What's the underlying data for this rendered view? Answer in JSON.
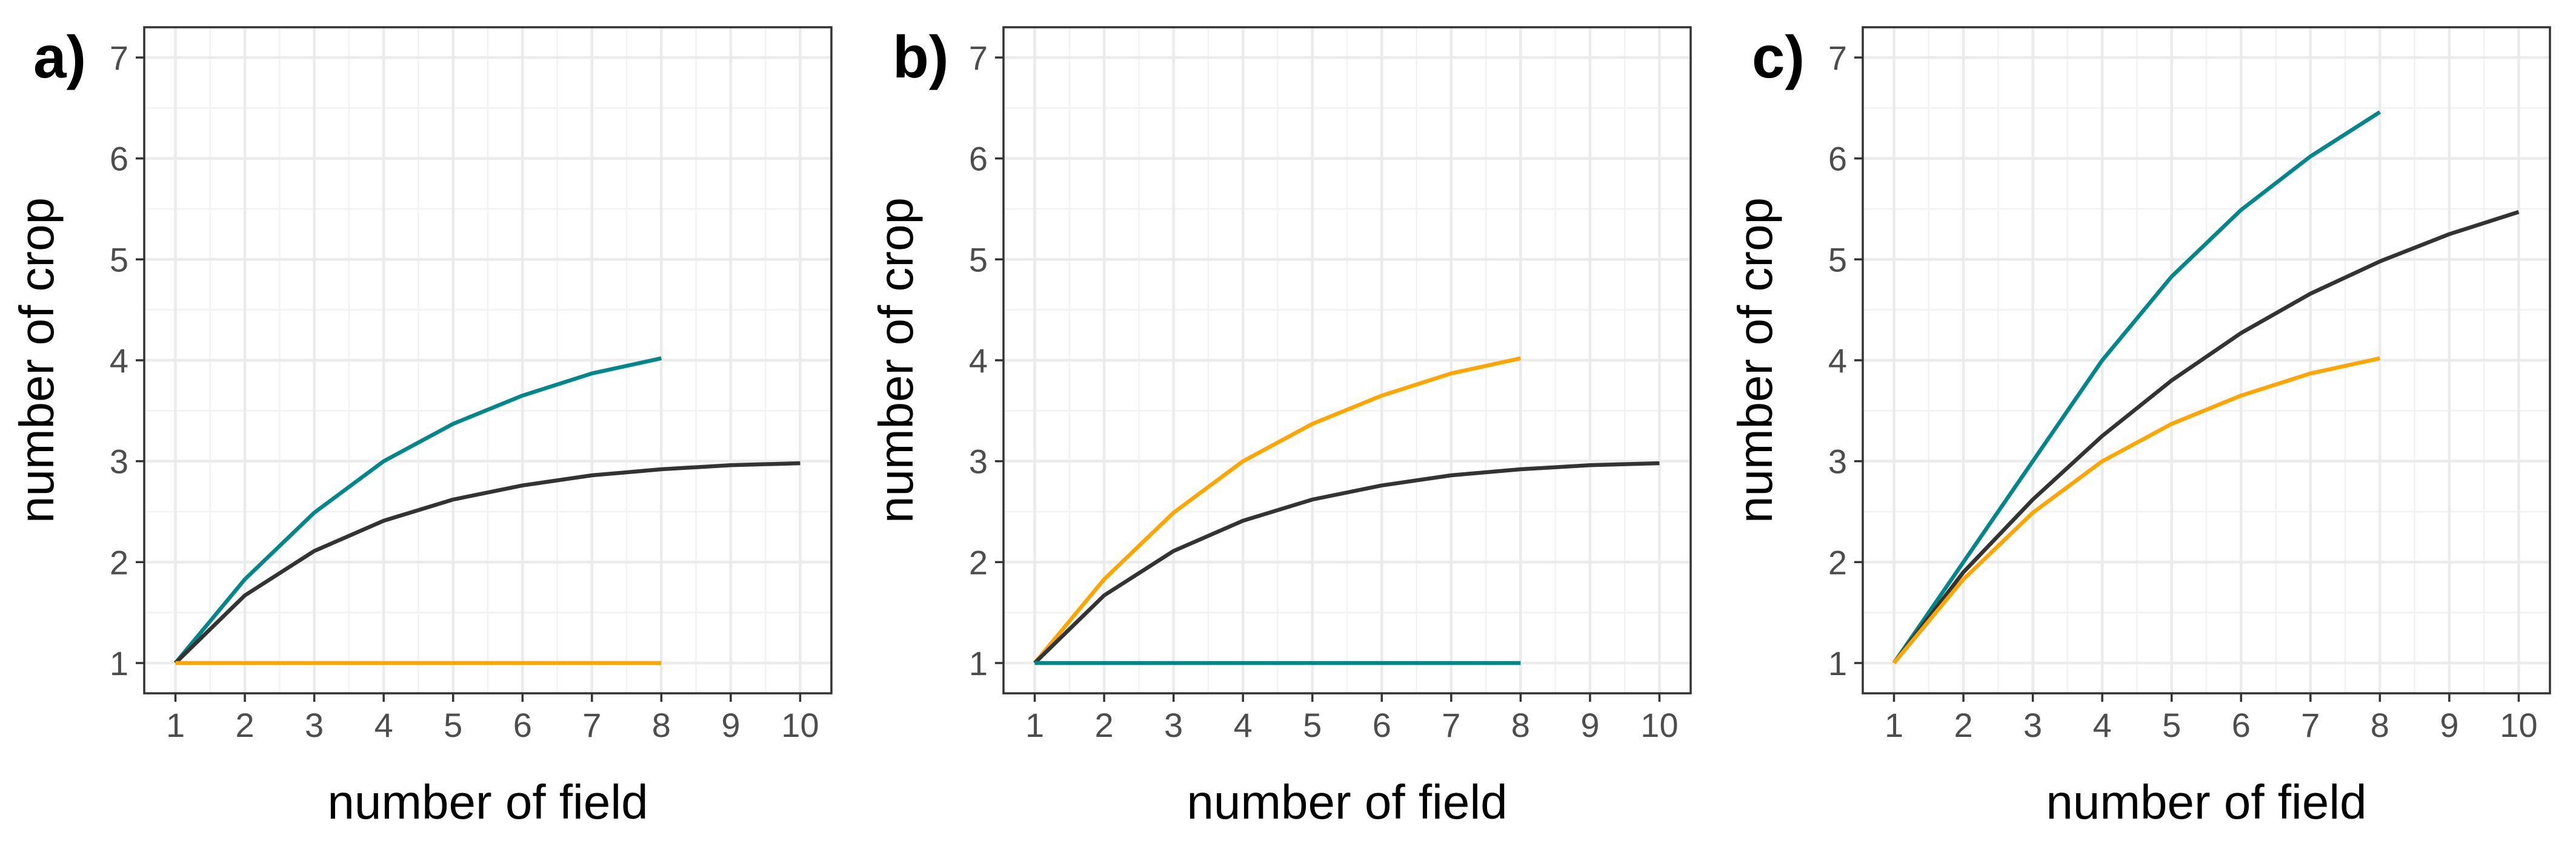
{
  "chart_data": [
    {
      "type": "line",
      "panel_label": "a)",
      "xlabel": "number of field",
      "ylabel": "number of crop",
      "xlim": [
        1,
        10
      ],
      "ylim": [
        1,
        7
      ],
      "xticks": [
        1,
        2,
        3,
        4,
        5,
        6,
        7,
        8,
        9,
        10
      ],
      "yticks": [
        1,
        2,
        3,
        4,
        5,
        6,
        7
      ],
      "grid": true,
      "series": [
        {
          "color": "#00868B",
          "x": [
            1,
            2,
            3,
            4,
            5,
            6,
            7,
            8
          ],
          "y": [
            1,
            1.83,
            2.49,
            3.0,
            3.37,
            3.65,
            3.87,
            4.02
          ]
        },
        {
          "color": "#333333",
          "x": [
            1,
            2,
            3,
            4,
            5,
            6,
            7,
            8,
            9,
            10
          ],
          "y": [
            1,
            1.67,
            2.11,
            2.41,
            2.62,
            2.76,
            2.86,
            2.92,
            2.96,
            2.98
          ]
        },
        {
          "color": "#FFA500",
          "x": [
            1,
            2,
            3,
            4,
            5,
            6,
            7,
            8
          ],
          "y": [
            1,
            1,
            1,
            1,
            1,
            1,
            1,
            1
          ]
        }
      ]
    },
    {
      "type": "line",
      "panel_label": "b)",
      "xlabel": "number of field",
      "ylabel": "number of crop",
      "xlim": [
        1,
        10
      ],
      "ylim": [
        1,
        7
      ],
      "xticks": [
        1,
        2,
        3,
        4,
        5,
        6,
        7,
        8,
        9,
        10
      ],
      "yticks": [
        1,
        2,
        3,
        4,
        5,
        6,
        7
      ],
      "grid": true,
      "series": [
        {
          "color": "#FFA500",
          "x": [
            1,
            2,
            3,
            4,
            5,
            6,
            7,
            8
          ],
          "y": [
            1,
            1.83,
            2.49,
            3.0,
            3.37,
            3.65,
            3.87,
            4.02
          ]
        },
        {
          "color": "#333333",
          "x": [
            1,
            2,
            3,
            4,
            5,
            6,
            7,
            8,
            9,
            10
          ],
          "y": [
            1,
            1.67,
            2.11,
            2.41,
            2.62,
            2.76,
            2.86,
            2.92,
            2.96,
            2.98
          ]
        },
        {
          "color": "#00868B",
          "x": [
            1,
            2,
            3,
            4,
            5,
            6,
            7,
            8
          ],
          "y": [
            1,
            1,
            1,
            1,
            1,
            1,
            1,
            1
          ]
        }
      ]
    },
    {
      "type": "line",
      "panel_label": "c)",
      "xlabel": "number of field",
      "ylabel": "number of crop",
      "xlim": [
        1,
        10
      ],
      "ylim": [
        1,
        7
      ],
      "xticks": [
        1,
        2,
        3,
        4,
        5,
        6,
        7,
        8,
        9,
        10
      ],
      "yticks": [
        1,
        2,
        3,
        4,
        5,
        6,
        7
      ],
      "grid": true,
      "series": [
        {
          "color": "#00868B",
          "x": [
            1,
            2,
            3,
            4,
            5,
            6,
            7,
            8
          ],
          "y": [
            1,
            2.0,
            3.0,
            4.0,
            4.83,
            5.49,
            6.02,
            6.46
          ]
        },
        {
          "color": "#333333",
          "x": [
            1,
            2,
            3,
            4,
            5,
            6,
            7,
            8,
            9,
            10
          ],
          "y": [
            1,
            1.9,
            2.62,
            3.25,
            3.8,
            4.27,
            4.66,
            4.98,
            5.25,
            5.47
          ]
        },
        {
          "color": "#FFA500",
          "x": [
            1,
            2,
            3,
            4,
            5,
            6,
            7,
            8
          ],
          "y": [
            1,
            1.83,
            2.49,
            3.0,
            3.37,
            3.65,
            3.87,
            4.02
          ]
        }
      ]
    }
  ]
}
